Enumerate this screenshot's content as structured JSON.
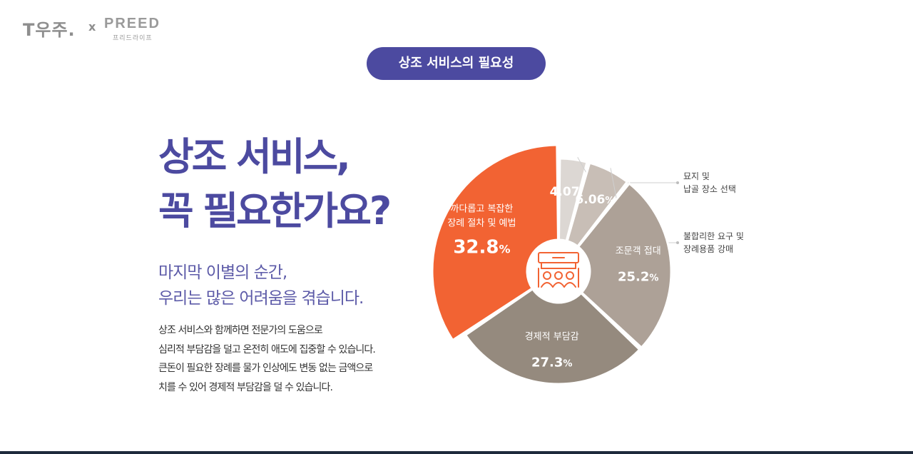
{
  "logo": {
    "brand_left": "T우주.",
    "separator": "x",
    "brand_right": "PREED",
    "brand_right_sub": "프리드라이프"
  },
  "badge": {
    "label": "상조 서비스의 필요성"
  },
  "headline": {
    "line1": "상조 서비스,",
    "line2": "꼭 필요한가요?"
  },
  "subhead": {
    "line1": "마지막 이별의 순간,",
    "line2": "우리는 많은 어려움을 겪습니다."
  },
  "body": {
    "lines": [
      "상조 서비스와 함께하면 전문가의 도움으로",
      "심리적 부담감을 덜고 온전히 애도에 집중할 수 있습니다.",
      "큰돈이 필요한 장례를 물가 인상에도 변동 없는 금액으로",
      "치를 수 있어 경제적 부담감을 덜 수 있습니다."
    ]
  },
  "chart_data": {
    "type": "pie",
    "title": "",
    "unit": "%",
    "slices": [
      {
        "label_lines": [
          "까다롭고 복잡한",
          "장례 절차 및 예법"
        ],
        "value": 32.8,
        "display": "32.8",
        "color": "#f26333",
        "text_color": "#ffffff"
      },
      {
        "label_lines": [
          "묘지 및",
          "납골 장소 선택"
        ],
        "value": 4.07,
        "display": "4.07",
        "color": "#dcd7d3",
        "text_color": "#ffffff",
        "callout": true
      },
      {
        "label_lines": [
          "불합리한 요구 및",
          "장례용품 강매"
        ],
        "value": 6.06,
        "display": "6.06",
        "color": "#c8beb6",
        "text_color": "#ffffff",
        "callout": true
      },
      {
        "label_lines": [
          "조문객 접대"
        ],
        "value": 25.2,
        "display": "25.2",
        "color": "#ada197",
        "text_color": "#ffffff"
      },
      {
        "label_lines": [
          "경제적 부담감"
        ],
        "value": 27.3,
        "display": "27.3",
        "color": "#958a7e",
        "text_color": "#ffffff"
      }
    ],
    "center_icon": "funeral-altar-icon",
    "accent_color": "#f26333"
  }
}
